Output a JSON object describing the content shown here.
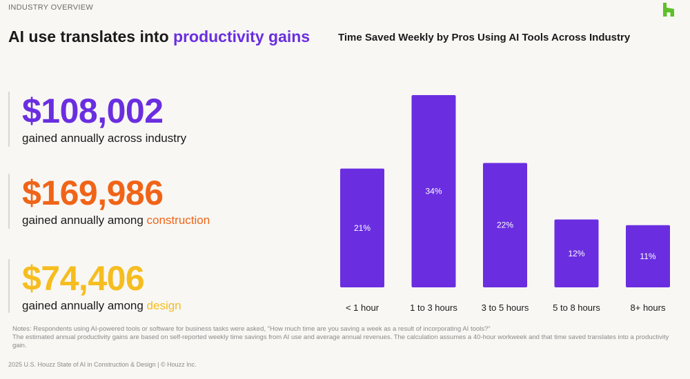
{
  "header": {
    "section_label": "INDUSTRY OVERVIEW",
    "title_plain": "AI use translates into ",
    "title_accent": "productivity gains"
  },
  "brand": {
    "logo_icon": "houzz-logo-icon",
    "color": "#5fbf2a"
  },
  "stats": [
    {
      "value": "$108,002",
      "desc_plain": "gained annually across industry",
      "desc_accent": "",
      "color": "#6a2ee0"
    },
    {
      "value": "$169,986",
      "desc_plain": "gained annually among ",
      "desc_accent": "construction",
      "color": "#f06418"
    },
    {
      "value": "$74,406",
      "desc_plain": "gained annually among ",
      "desc_accent": "design",
      "color": "#f5bd1f"
    }
  ],
  "chart_data": {
    "type": "bar",
    "title": "Time Saved Weekly by Pros Using AI Tools Across Industry",
    "categories": [
      "< 1 hour",
      "1 to 3 hours",
      "3 to 5 hours",
      "5 to 8 hours",
      "8+ hours"
    ],
    "values": [
      21,
      34,
      22,
      12,
      11
    ],
    "value_labels": [
      "21%",
      "34%",
      "22%",
      "12%",
      "11%"
    ],
    "xlabel": "",
    "ylabel": "",
    "ylim": [
      0,
      34
    ],
    "grid": false,
    "bar_color": "#6a2ee0"
  },
  "notes": {
    "line1": "Notes: Respondents using AI-powered tools or software for business tasks were asked, \"How much time are you saving a week as a result of incorporating AI tools?\"",
    "line2": "The estimated annual productivity gains are based on self-reported weekly time savings from AI use and average annual revenues. The calculation assumes a 40-hour workweek and that time saved translates into a productivity gain."
  },
  "footer": {
    "text": "2025 U.S. Houzz State of AI in Construction & Design | © Houzz Inc."
  }
}
